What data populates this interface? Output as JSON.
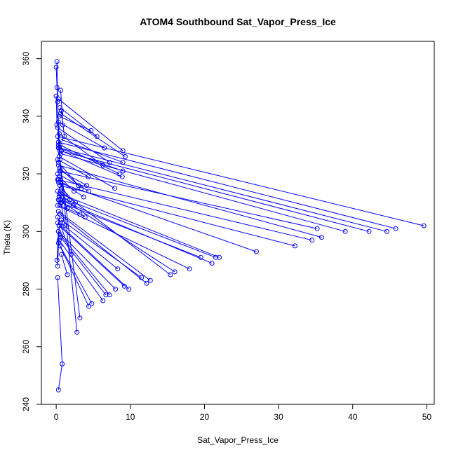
{
  "chart_data": {
    "type": "scatter",
    "title": "ATOM4 Southbound Sat_Vapor_Press_Ice",
    "xlabel": "Sat_Vapor_Press_Ice",
    "ylabel": "Theta (K)",
    "xlim": [
      -2,
      51
    ],
    "ylim": [
      240,
      366
    ],
    "xticks": [
      0,
      10,
      20,
      30,
      40,
      50
    ],
    "yticks": [
      240,
      260,
      280,
      300,
      320,
      340,
      360
    ],
    "grid": false,
    "color": "#0000ff",
    "marker": "open-circle",
    "connected": true,
    "series": [
      {
        "x": [
          0.1,
          0.3,
          2.8
        ],
        "y": [
          359,
          330,
          265
        ]
      },
      {
        "x": [
          0.0,
          0.5,
          3.2
        ],
        "y": [
          357,
          325,
          270
        ]
      },
      {
        "x": [
          0.2,
          49.6
        ],
        "y": [
          333,
          302
        ]
      },
      {
        "x": [
          0.3,
          45.8
        ],
        "y": [
          331,
          301
        ]
      },
      {
        "x": [
          0.4,
          44.6
        ],
        "y": [
          329,
          300
        ]
      },
      {
        "x": [
          0.5,
          42.2
        ],
        "y": [
          328,
          300
        ]
      },
      {
        "x": [
          0.6,
          39.0
        ],
        "y": [
          327,
          300
        ]
      },
      {
        "x": [
          0.3,
          35.8
        ],
        "y": [
          323,
          298
        ]
      },
      {
        "x": [
          0.4,
          35.2
        ],
        "y": [
          321,
          301
        ]
      },
      {
        "x": [
          0.2,
          34.5
        ],
        "y": [
          318,
          297
        ]
      },
      {
        "x": [
          0.5,
          32.2
        ],
        "y": [
          316,
          295
        ]
      },
      {
        "x": [
          0.3,
          27.0
        ],
        "y": [
          317,
          293
        ]
      },
      {
        "x": [
          0.6,
          22.0
        ],
        "y": [
          313,
          291
        ]
      },
      {
        "x": [
          0.4,
          21.5
        ],
        "y": [
          312,
          291
        ]
      },
      {
        "x": [
          0.5,
          21.0
        ],
        "y": [
          311,
          289
        ]
      },
      {
        "x": [
          0.7,
          19.5
        ],
        "y": [
          310,
          291
        ]
      },
      {
        "x": [
          0.2,
          18.0
        ],
        "y": [
          309,
          287
        ]
      },
      {
        "x": [
          0.4,
          16.0
        ],
        "y": [
          312,
          286
        ]
      },
      {
        "x": [
          0.6,
          15.4
        ],
        "y": [
          314,
          285
        ]
      },
      {
        "x": [
          0.3,
          12.7
        ],
        "y": [
          307,
          283
        ]
      },
      {
        "x": [
          0.5,
          12.2
        ],
        "y": [
          306,
          282
        ]
      },
      {
        "x": [
          0.7,
          11.5
        ],
        "y": [
          304,
          284
        ]
      },
      {
        "x": [
          0.2,
          9.8
        ],
        "y": [
          303,
          280
        ]
      },
      {
        "x": [
          0.4,
          9.2
        ],
        "y": [
          302,
          281
        ]
      },
      {
        "x": [
          0.3,
          8.0
        ],
        "y": [
          300,
          280
        ]
      },
      {
        "x": [
          0.5,
          7.2
        ],
        "y": [
          299,
          278
        ]
      },
      {
        "x": [
          0.6,
          6.7
        ],
        "y": [
          298,
          278
        ]
      },
      {
        "x": [
          0.4,
          6.3
        ],
        "y": [
          297,
          276
        ]
      },
      {
        "x": [
          0.3,
          4.8
        ],
        "y": [
          296,
          275
        ]
      },
      {
        "x": [
          0.5,
          4.4
        ],
        "y": [
          295,
          274
        ]
      },
      {
        "x": [
          0.6,
          8.3
        ],
        "y": [
          303,
          287
        ]
      },
      {
        "x": [
          0.2,
          2.0
        ],
        "y": [
          305,
          292
        ]
      },
      {
        "x": [
          0.7,
          1.5
        ],
        "y": [
          292,
          285
        ]
      },
      {
        "x": [
          0.3,
          0.1
        ],
        "y": [
          300,
          290
        ]
      },
      {
        "x": [
          0.4,
          0.2
        ],
        "y": [
          302,
          288
        ]
      },
      {
        "x": [
          0.2,
          0.8,
          0.3
        ],
        "y": [
          284,
          254,
          245
        ]
      },
      {
        "x": [
          0.3,
          9.0
        ],
        "y": [
          346,
          328
        ]
      },
      {
        "x": [
          0.6,
          9.3
        ],
        "y": [
          341,
          326
        ]
      },
      {
        "x": [
          0.5,
          5.5
        ],
        "y": [
          343,
          333
        ]
      },
      {
        "x": [
          0.4,
          4.7
        ],
        "y": [
          340,
          335
        ]
      },
      {
        "x": [
          0.3,
          6.5
        ],
        "y": [
          338,
          329
        ]
      },
      {
        "x": [
          0.2,
          7.2
        ],
        "y": [
          336,
          324
        ]
      },
      {
        "x": [
          0.4,
          6.3
        ],
        "y": [
          334,
          323
        ]
      },
      {
        "x": [
          0.6,
          9.0
        ],
        "y": [
          332,
          324
        ]
      },
      {
        "x": [
          0.5,
          8.5
        ],
        "y": [
          330,
          320
        ]
      },
      {
        "x": [
          0.3,
          9.0
        ],
        "y": [
          329,
          321
        ]
      },
      {
        "x": [
          0.7,
          8.9
        ],
        "y": [
          328,
          319
        ]
      },
      {
        "x": [
          0.4,
          7.9
        ],
        "y": [
          326,
          315
        ]
      },
      {
        "x": [
          0.2,
          4.3
        ],
        "y": [
          325,
          319
        ]
      },
      {
        "x": [
          0.3,
          3.0
        ],
        "y": [
          324,
          316
        ]
      },
      {
        "x": [
          0.5,
          3.4
        ],
        "y": [
          322,
          315
        ]
      },
      {
        "x": [
          0.6,
          4.1
        ],
        "y": [
          321,
          316
        ]
      },
      {
        "x": [
          0.2,
          4.4
        ],
        "y": [
          320,
          314
        ]
      },
      {
        "x": [
          0.4,
          2.4
        ],
        "y": [
          319,
          314
        ]
      },
      {
        "x": [
          0.3,
          3.7
        ],
        "y": [
          318,
          312
        ]
      },
      {
        "x": [
          0.5,
          1.8
        ],
        "y": [
          317,
          311
        ]
      },
      {
        "x": [
          0.7,
          2.6
        ],
        "y": [
          315,
          310
        ]
      },
      {
        "x": [
          0.2,
          2.3
        ],
        "y": [
          314,
          309
        ]
      },
      {
        "x": [
          0.4,
          1.5
        ],
        "y": [
          313,
          308
        ]
      },
      {
        "x": [
          0.3,
          3.9
        ],
        "y": [
          311,
          305
        ]
      },
      {
        "x": [
          0.6,
          1.2
        ],
        "y": [
          310,
          302
        ]
      },
      {
        "x": [
          0.5,
          3.2
        ],
        "y": [
          309,
          306
        ]
      },
      {
        "x": [
          0.7,
          1.1
        ],
        "y": [
          342,
          333
        ]
      },
      {
        "x": [
          0.6,
          0.9
        ],
        "y": [
          349,
          337
        ]
      },
      {
        "x": [
          0.1,
          0.2
        ],
        "y": [
          350,
          345
        ]
      },
      {
        "x": [
          0.0,
          0.1
        ],
        "y": [
          347,
          337
        ]
      }
    ]
  }
}
